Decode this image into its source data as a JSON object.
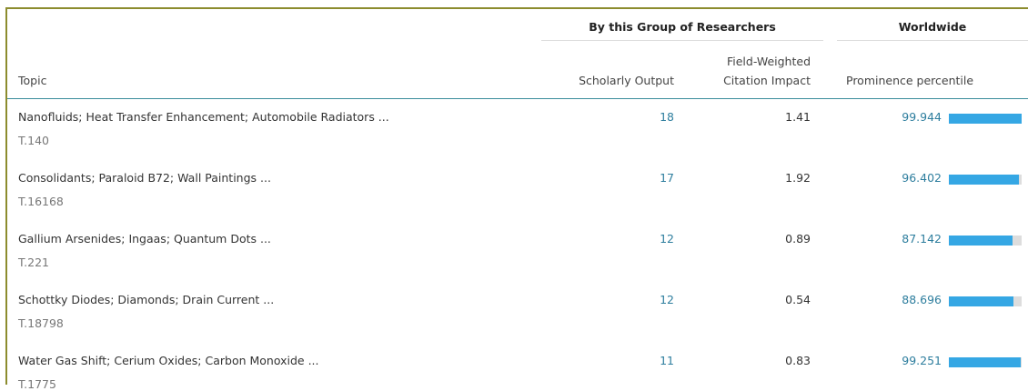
{
  "group_headers": [
    "By this Group of Researchers",
    "Worldwide"
  ],
  "columns": [
    "Topic",
    "Scholarly Output",
    "Field-Weighted\nCitation Impact",
    "Prominence percentile"
  ],
  "rows": [
    {
      "topic": "Nanofluids; Heat Transfer Enhancement; Automobile Radiators ...",
      "id": "T.140",
      "scholarly_output": 18,
      "fwci": 1.41,
      "prominence_percentile": 99.944
    },
    {
      "topic": "Consolidants; Paraloid B72; Wall Paintings ...",
      "id": "T.16168",
      "scholarly_output": 17,
      "fwci": 1.92,
      "prominence_percentile": 96.402
    },
    {
      "topic": "Gallium Arsenides; Ingaas; Quantum Dots ...",
      "id": "T.221",
      "scholarly_output": 12,
      "fwci": 0.89,
      "prominence_percentile": 87.142
    },
    {
      "topic": "Schottky Diodes; Diamonds; Drain Current ...",
      "id": "T.18798",
      "scholarly_output": 12,
      "fwci": 0.54,
      "prominence_percentile": 88.696
    },
    {
      "topic": "Water Gas Shift; Cerium Oxides; Carbon Monoxide ...",
      "id": "T.1775",
      "scholarly_output": 11,
      "fwci": 0.83,
      "prominence_percentile": 99.251
    }
  ]
}
